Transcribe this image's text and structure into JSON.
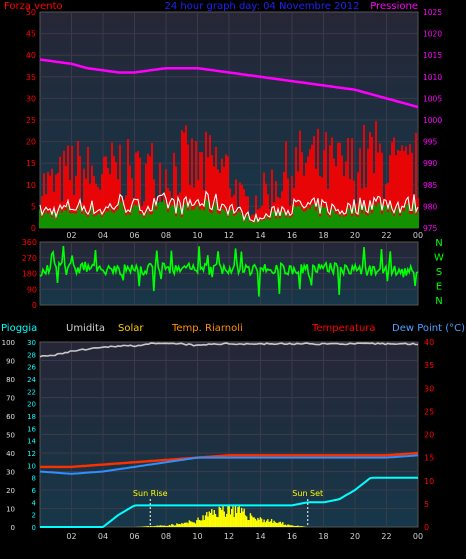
{
  "colors": {
    "wind_gust": "#ff0000",
    "wind_avg": "#ffffff",
    "wind_fill": "#00a000",
    "pressure": "#ff00ff",
    "direction": "#00ff00",
    "humidity": "#c8c8c8",
    "temperature": "#ff3000",
    "dewpoint": "#3090ff",
    "rain": "#00ffff",
    "solar": "#ffff00",
    "title_blue": "#2020ff",
    "label_red": "#ff0000",
    "label_blue": "#4aa0ff",
    "label_solar": "#ffcc00",
    "label_riarnoli": "#ff9000"
  },
  "chart_data": [
    {
      "type": "line",
      "title": "24 hour graph day: 04 Novembre 2012",
      "left_label": "Forza vento",
      "right_label": "Pressione",
      "x_ticks": [
        "02",
        "04",
        "06",
        "08",
        "10",
        "12",
        "14",
        "16",
        "18",
        "20",
        "22",
        "00"
      ],
      "yleft_ticks": [
        "0",
        "5",
        "10",
        "15",
        "20",
        "25",
        "30",
        "35",
        "40",
        "45",
        "50"
      ],
      "yright_ticks": [
        "975",
        "980",
        "985",
        "990",
        "995",
        "1000",
        "1005",
        "1010",
        "1015",
        "1020",
        "1025"
      ],
      "ylim_left": [
        0,
        50
      ],
      "ylim_right": [
        975,
        1025
      ],
      "grid": true,
      "series": [
        {
          "x": [
            1,
            2,
            3,
            4,
            5,
            6,
            7,
            8,
            9,
            10,
            11,
            12,
            13,
            14,
            15,
            16,
            17,
            18,
            19,
            20,
            21,
            22,
            23,
            24
          ],
          "values": [
            11,
            15,
            14,
            12,
            16,
            13,
            15,
            14,
            17,
            15,
            16,
            14,
            6,
            8,
            12,
            15,
            17,
            16,
            15,
            16,
            18,
            17,
            14,
            16
          ]
        },
        {
          "x": [
            1,
            2,
            3,
            4,
            5,
            6,
            7,
            8,
            9,
            10,
            11,
            12,
            13,
            14,
            15,
            16,
            17,
            18,
            19,
            20,
            21,
            22,
            23,
            24
          ],
          "values": [
            4,
            5,
            5,
            4,
            6,
            5,
            5,
            6,
            5,
            6,
            6,
            5,
            3,
            2,
            4,
            5,
            5,
            5,
            4,
            5,
            6,
            6,
            5,
            6
          ]
        },
        {
          "x": [
            0,
            1,
            2,
            3,
            4,
            5,
            6,
            7,
            8,
            9,
            10,
            11,
            12,
            13,
            14,
            15,
            16,
            17,
            18,
            19,
            20,
            21,
            22,
            23,
            24
          ],
          "values": [
            1014,
            1013.5,
            1013,
            1012,
            1011.5,
            1011,
            1011,
            1011.5,
            1012,
            1012,
            1012,
            1011.5,
            1011,
            1010.5,
            1010,
            1009.5,
            1009,
            1008.5,
            1008,
            1007.5,
            1007,
            1006,
            1005,
            1004,
            1003
          ]
        }
      ]
    },
    {
      "type": "scatter",
      "right_labels": [
        "N",
        "W",
        "S",
        "E",
        "N"
      ],
      "y_ticks": [
        "0",
        "90",
        "180",
        "270",
        "360"
      ],
      "ylim": [
        0,
        360
      ],
      "series": [
        {
          "x": [
            0,
            1,
            2,
            3,
            4,
            5,
            6,
            7,
            8,
            9,
            10,
            11,
            12,
            13,
            14,
            15,
            16,
            17,
            18,
            19,
            20,
            21,
            22,
            23,
            24
          ],
          "values": [
            200,
            210,
            205,
            215,
            200,
            210,
            195,
            205,
            210,
            200,
            215,
            205,
            210,
            200,
            205,
            210,
            200,
            205,
            215,
            210,
            205,
            200,
            215,
            190,
            200
          ]
        }
      ]
    },
    {
      "type": "line",
      "labels": [
        "Pioggia",
        "Umidita",
        "Solar",
        "Temp. Riarnoli",
        "Temperatura",
        "Dew Point (°C)"
      ],
      "left_humidity_ticks": [
        "0",
        "10",
        "20",
        "30",
        "40",
        "50",
        "60",
        "70",
        "80",
        "90",
        "100"
      ],
      "left_rain_ticks": [
        "0",
        "2",
        "4",
        "6",
        "8",
        "10",
        "12",
        "14",
        "16",
        "18",
        "20",
        "22",
        "24",
        "26",
        "28",
        "30"
      ],
      "right_temp_ticks": [
        "0",
        "5",
        "10",
        "15",
        "20",
        "25",
        "30",
        "35",
        "40"
      ],
      "ylim_humidity": [
        0,
        100
      ],
      "ylim_temp": [
        0,
        40
      ],
      "annotations": [
        "Sun Rise",
        "Sun Set"
      ],
      "x_ticks": [
        "02",
        "04",
        "06",
        "08",
        "10",
        "12",
        "14",
        "16",
        "18",
        "20",
        "22",
        "00"
      ],
      "series": [
        {
          "x": [
            0,
            1,
            2,
            3,
            4,
            5,
            6,
            7,
            8,
            9,
            10,
            11,
            12,
            13,
            14,
            15,
            16,
            17,
            18,
            19,
            20,
            21,
            22,
            23,
            24
          ],
          "values": [
            92,
            93,
            95,
            96,
            97,
            98,
            98,
            99,
            99,
            99,
            98,
            99,
            99,
            99,
            99,
            99,
            99,
            99,
            99,
            99,
            99,
            99,
            99,
            99,
            99
          ]
        },
        {
          "x": [
            0,
            2,
            4,
            6,
            8,
            10,
            12,
            14,
            16,
            18,
            20,
            22,
            24
          ],
          "values": [
            13,
            13,
            13.5,
            14,
            14.5,
            15,
            15.5,
            15.5,
            15.5,
            15.5,
            15.5,
            15.5,
            16
          ]
        },
        {
          "x": [
            0,
            2,
            4,
            6,
            8,
            10,
            12,
            14,
            16,
            18,
            20,
            22,
            24
          ],
          "values": [
            12,
            11.5,
            12,
            13,
            14,
            15,
            15,
            15,
            15,
            15,
            15,
            15,
            15.5
          ]
        },
        {
          "x": [
            0,
            3,
            4,
            5,
            6,
            8,
            10,
            12,
            14,
            16,
            17,
            18,
            19,
            20,
            21,
            24
          ],
          "values": [
            0,
            0,
            0,
            2,
            3.5,
            3.5,
            3.5,
            3.5,
            3.5,
            3.5,
            4,
            4,
            4.5,
            6,
            8,
            8
          ]
        },
        {
          "x": [
            6,
            8,
            9,
            10,
            11,
            12,
            13,
            14,
            15,
            16,
            17
          ],
          "values": [
            0,
            5,
            10,
            20,
            45,
            60,
            40,
            25,
            15,
            5,
            0
          ]
        }
      ]
    }
  ]
}
